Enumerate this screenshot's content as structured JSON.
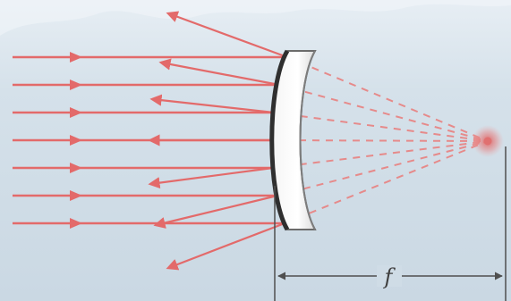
{
  "diagram": {
    "focal_length_label": "f",
    "colors": {
      "ray": "#e36a6a",
      "ray_dashed": "#e68a8a",
      "focus": "#e07070",
      "mirror_face": "#ffffff",
      "mirror_edge": "#6b6b6b",
      "mirror_back": "#2f2f2f",
      "dimension_line": "#4f4f4f",
      "background": "#cddbe6"
    }
  }
}
